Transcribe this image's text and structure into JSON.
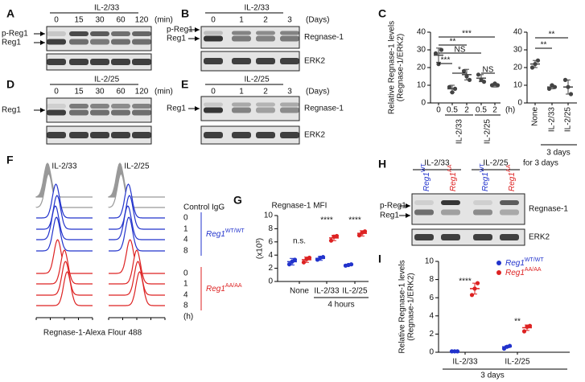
{
  "blots": {
    "A": {
      "letter": "A",
      "treatment": "IL-2/33",
      "lanes": [
        "0",
        "15",
        "30",
        "60",
        "120"
      ],
      "unit": "(min)",
      "labels": [
        "p-Reg1",
        "Reg1"
      ]
    },
    "B": {
      "letter": "B",
      "treatment": "IL-2/33",
      "lanes": [
        "0",
        "1",
        "2",
        "3"
      ],
      "unit": "(Days)",
      "labels": [
        "p-Reg1",
        "Reg1"
      ],
      "proteins": [
        "Regnase-1",
        "ERK2"
      ]
    },
    "D": {
      "letter": "D",
      "treatment": "IL-2/25",
      "lanes": [
        "0",
        "15",
        "30",
        "60",
        "120"
      ],
      "unit": "(min)",
      "labels": [
        "Reg1"
      ]
    },
    "E": {
      "letter": "E",
      "treatment": "IL-2/25",
      "lanes": [
        "0",
        "1",
        "2",
        "3"
      ],
      "unit": "(Days)",
      "labels": [
        "Reg1"
      ],
      "proteins": [
        "Regnase-1",
        "ERK2"
      ]
    },
    "H": {
      "letter": "H",
      "treatments": [
        "IL-2/33",
        "IL-2/25"
      ],
      "duration": "for 3 days",
      "lanes": [
        {
          "name": "Reg1",
          "sup": "WT",
          "color": "#2233cc"
        },
        {
          "name": "Reg1",
          "sup": "AA",
          "color": "#dd2222"
        },
        {
          "name": "Reg1",
          "sup": "WT",
          "color": "#2233cc"
        },
        {
          "name": "Reg1",
          "sup": "AA",
          "color": "#dd2222"
        }
      ],
      "labels": [
        "p-Reg1",
        "Reg1"
      ],
      "proteins": [
        "Regnase-1",
        "ERK2"
      ]
    }
  },
  "histograms": {
    "letter": "F",
    "treatments": [
      "IL-2/33",
      "IL-2/25"
    ],
    "control": "Control IgG",
    "times": [
      "0",
      "1",
      "4",
      "8"
    ],
    "unit": "(h)",
    "genotypes": [
      {
        "name": "Reg1",
        "sup": "WT/WT",
        "color": "#2233cc"
      },
      {
        "name": "Reg1",
        "sup": "AA/AA",
        "color": "#dd2222"
      }
    ],
    "x_label": "Regnase-1-Alexa Flour 488"
  },
  "chart_data": [
    {
      "type": "dot",
      "letter": "C",
      "y_label": [
        "Relative Regnase-1 levels",
        "(Regnase-1/ERK2)"
      ],
      "categories": [
        "0",
        "0.5",
        "2",
        "0.5",
        "2"
      ],
      "x_unit": "(h)",
      "groups": [
        "IL-2/33",
        "IL-2/25"
      ],
      "ylim": [
        0,
        40
      ],
      "yticks": [
        0,
        10,
        20,
        30,
        40
      ],
      "series": [
        {
          "color": "#444444",
          "values": [
            [
              28,
              22,
              30
            ],
            [
              9,
              6,
              8
            ],
            [
              18,
              15,
              13
            ],
            [
              16,
              13,
              12
            ],
            [
              10,
              11,
              10
            ]
          ],
          "means": [
            27,
            8,
            16,
            14,
            10
          ],
          "errors": [
            4,
            2,
            3,
            2,
            1
          ]
        }
      ],
      "annotations": [
        "***",
        "**",
        "NS",
        "***",
        "*",
        "NS"
      ]
    },
    {
      "type": "dot",
      "categories": [
        "None",
        "IL-2/33",
        "IL-2/25"
      ],
      "groups": [
        "3 days"
      ],
      "ylim": [
        0,
        40
      ],
      "yticks": [
        0,
        10,
        20,
        30,
        40
      ],
      "series": [
        {
          "color": "#444444",
          "values": [
            [
              20,
              22,
              24
            ],
            [
              8,
              10,
              9
            ],
            [
              13,
              9,
              5
            ]
          ],
          "means": [
            22,
            9,
            9
          ],
          "errors": [
            2,
            1,
            4
          ]
        }
      ],
      "annotations": [
        "**",
        "**"
      ]
    },
    {
      "type": "dot",
      "letter": "G",
      "title": "Regnase-1 MFI",
      "y_label": [
        "(x10³)"
      ],
      "categories": [
        "None",
        "IL-2/33",
        "IL-2/25"
      ],
      "groups": [
        "4 hours"
      ],
      "ylim": [
        0,
        10
      ],
      "yticks": [
        0,
        2,
        4,
        6,
        8,
        10
      ],
      "series": [
        {
          "color": "#2233cc",
          "values": [
            [
              2.6,
              3.0,
              3.3
            ],
            [
              3.3,
              3.6,
              3.7
            ],
            [
              2.4,
              2.5,
              2.6
            ]
          ],
          "means": [
            3.0,
            3.5,
            2.5
          ],
          "errors": [
            0.5,
            0.3,
            0.1
          ]
        },
        {
          "color": "#dd2222",
          "values": [
            [
              2.9,
              3.4,
              3.6
            ],
            [
              6.2,
              6.8,
              6.9
            ],
            [
              7.0,
              7.4,
              7.6
            ]
          ],
          "means": [
            3.3,
            6.6,
            7.3
          ],
          "errors": [
            0.4,
            0.4,
            0.4
          ]
        }
      ],
      "annotations": [
        "n.s.",
        "****",
        "****"
      ]
    },
    {
      "type": "dot",
      "letter": "I",
      "y_label": [
        "Relative Regnase-1 levels",
        "(Regnase-1/ERK2)"
      ],
      "categories": [
        "IL-2/33",
        "IL-2/25"
      ],
      "groups": [
        "3 days"
      ],
      "ylim": [
        0,
        10
      ],
      "yticks": [
        0,
        2,
        4,
        6,
        8,
        10
      ],
      "legend": "upper right",
      "series": [
        {
          "name": "Reg1",
          "sup": "WT/WT",
          "color": "#2233cc",
          "values": [
            [
              0.1,
              0.1,
              0.1
            ],
            [
              0.4,
              0.6,
              0.7
            ]
          ],
          "means": [
            0.1,
            0.6
          ],
          "errors": [
            0,
            0.1
          ]
        },
        {
          "name": "Reg1",
          "sup": "AA/AA",
          "color": "#dd2222",
          "values": [
            [
              6.3,
              7.0,
              7.6
            ],
            [
              2.3,
              2.8,
              2.9
            ]
          ],
          "means": [
            7.0,
            2.7
          ],
          "errors": [
            0.6,
            0.3
          ]
        }
      ],
      "annotations": [
        "****",
        "**"
      ]
    }
  ]
}
